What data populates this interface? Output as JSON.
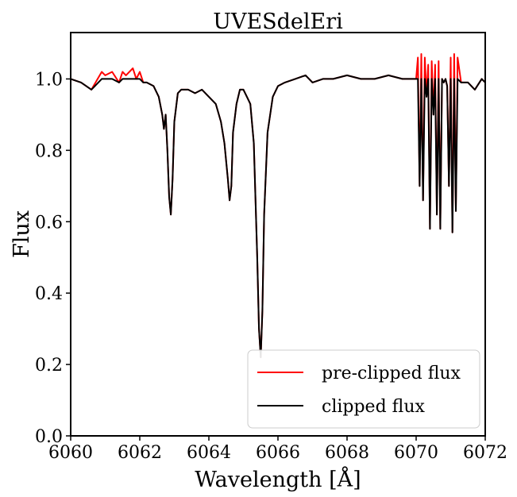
{
  "chart_data": {
    "type": "line",
    "title": "UVESdelEri",
    "xlabel": "Wavelength [Å]",
    "ylabel": "Flux",
    "xlim": [
      6060,
      6072
    ],
    "ylim": [
      0.0,
      1.13
    ],
    "x_ticks": [
      6060,
      6062,
      6064,
      6066,
      6068,
      6070,
      6072
    ],
    "x_tick_labels": [
      "6060",
      "6062",
      "6064",
      "6066",
      "6068",
      "6070",
      "6072"
    ],
    "y_ticks": [
      0.0,
      0.2,
      0.4,
      0.6,
      0.8,
      1.0
    ],
    "y_tick_labels": [
      "0.0",
      "0.2",
      "0.4",
      "0.6",
      "0.8",
      "1.0"
    ],
    "grid": false,
    "legend_position": "lower-right",
    "series": [
      {
        "name": "pre-clipped flux",
        "color": "#ff0000",
        "x": [
          6060.0,
          6060.3,
          6060.6,
          6060.9,
          6061.0,
          6061.2,
          6061.4,
          6061.5,
          6061.6,
          6061.8,
          6061.9,
          6062.0,
          6062.1,
          6062.2,
          6062.4,
          6062.55,
          6062.65,
          6062.7,
          6062.75,
          6062.8,
          6062.85,
          6062.9,
          6062.95,
          6063.0,
          6063.1,
          6063.2,
          6063.4,
          6063.6,
          6063.8,
          6064.0,
          6064.2,
          6064.35,
          6064.45,
          6064.55,
          6064.6,
          6064.65,
          6064.7,
          6064.8,
          6064.9,
          6065.0,
          6065.1,
          6065.2,
          6065.3,
          6065.4,
          6065.45,
          6065.5,
          6065.55,
          6065.6,
          6065.7,
          6065.85,
          6066.0,
          6066.2,
          6066.5,
          6066.8,
          6067.0,
          6067.3,
          6067.6,
          6068.0,
          6068.4,
          6068.8,
          6069.2,
          6069.6,
          6069.9,
          6070.0,
          6070.05,
          6070.1,
          6070.15,
          6070.2,
          6070.25,
          6070.3,
          6070.35,
          6070.4,
          6070.45,
          6070.5,
          6070.55,
          6070.6,
          6070.65,
          6070.7,
          6070.75,
          6070.8,
          6070.85,
          6070.9,
          6070.95,
          6071.0,
          6071.05,
          6071.1,
          6071.15,
          6071.2,
          6071.3,
          6071.5,
          6071.7,
          6071.9,
          6072.0
        ],
        "y": [
          1.0,
          0.99,
          0.97,
          1.02,
          1.01,
          1.02,
          0.99,
          1.02,
          1.01,
          1.03,
          1.0,
          1.02,
          0.99,
          0.99,
          0.98,
          0.95,
          0.9,
          0.86,
          0.9,
          0.8,
          0.67,
          0.62,
          0.72,
          0.88,
          0.96,
          0.97,
          0.97,
          0.96,
          0.97,
          0.95,
          0.93,
          0.88,
          0.82,
          0.72,
          0.66,
          0.7,
          0.85,
          0.93,
          0.97,
          0.97,
          0.95,
          0.93,
          0.82,
          0.5,
          0.3,
          0.22,
          0.35,
          0.62,
          0.85,
          0.95,
          0.98,
          0.99,
          1.0,
          1.01,
          0.99,
          1.0,
          1.0,
          1.01,
          1.0,
          1.0,
          1.01,
          1.0,
          1.0,
          1.0,
          1.06,
          0.7,
          1.07,
          0.66,
          1.06,
          0.95,
          1.04,
          0.58,
          1.05,
          0.9,
          1.04,
          0.62,
          1.05,
          0.58,
          1.0,
          0.99,
          1.0,
          0.98,
          0.7,
          1.06,
          0.57,
          1.07,
          0.63,
          1.06,
          0.99,
          0.99,
          0.97,
          1.0,
          0.99
        ]
      },
      {
        "name": "clipped flux",
        "color": "#000000",
        "x": [
          6060.0,
          6060.3,
          6060.6,
          6060.9,
          6061.0,
          6061.2,
          6061.4,
          6061.5,
          6061.6,
          6061.8,
          6061.9,
          6062.0,
          6062.1,
          6062.2,
          6062.4,
          6062.55,
          6062.65,
          6062.7,
          6062.75,
          6062.8,
          6062.85,
          6062.9,
          6062.95,
          6063.0,
          6063.1,
          6063.2,
          6063.4,
          6063.6,
          6063.8,
          6064.0,
          6064.2,
          6064.35,
          6064.45,
          6064.55,
          6064.6,
          6064.65,
          6064.7,
          6064.8,
          6064.9,
          6065.0,
          6065.1,
          6065.2,
          6065.3,
          6065.4,
          6065.45,
          6065.5,
          6065.55,
          6065.6,
          6065.7,
          6065.85,
          6066.0,
          6066.2,
          6066.5,
          6066.8,
          6067.0,
          6067.3,
          6067.6,
          6068.0,
          6068.4,
          6068.8,
          6069.2,
          6069.6,
          6069.9,
          6070.0,
          6070.05,
          6070.1,
          6070.15,
          6070.2,
          6070.25,
          6070.3,
          6070.35,
          6070.4,
          6070.45,
          6070.5,
          6070.55,
          6070.6,
          6070.65,
          6070.7,
          6070.75,
          6070.8,
          6070.85,
          6070.9,
          6070.95,
          6071.0,
          6071.05,
          6071.1,
          6071.15,
          6071.2,
          6071.3,
          6071.5,
          6071.7,
          6071.9,
          6072.0
        ],
        "y": [
          1.0,
          0.99,
          0.97,
          1.0,
          1.0,
          1.0,
          0.99,
          1.0,
          1.0,
          1.0,
          1.0,
          1.0,
          0.99,
          0.99,
          0.98,
          0.95,
          0.9,
          0.86,
          0.9,
          0.8,
          0.67,
          0.62,
          0.72,
          0.88,
          0.96,
          0.97,
          0.97,
          0.96,
          0.97,
          0.95,
          0.93,
          0.88,
          0.82,
          0.72,
          0.66,
          0.7,
          0.85,
          0.93,
          0.97,
          0.97,
          0.95,
          0.93,
          0.82,
          0.5,
          0.3,
          0.22,
          0.35,
          0.62,
          0.85,
          0.95,
          0.98,
          0.99,
          1.0,
          1.01,
          0.99,
          1.0,
          1.0,
          1.01,
          1.0,
          1.0,
          1.01,
          1.0,
          1.0,
          1.0,
          1.0,
          0.7,
          1.0,
          0.66,
          1.0,
          0.95,
          1.0,
          0.58,
          1.0,
          0.9,
          1.0,
          0.62,
          1.0,
          0.58,
          1.0,
          0.99,
          1.0,
          0.98,
          0.7,
          1.0,
          0.57,
          1.0,
          0.63,
          1.0,
          0.99,
          0.99,
          0.97,
          1.0,
          0.99
        ]
      }
    ]
  }
}
